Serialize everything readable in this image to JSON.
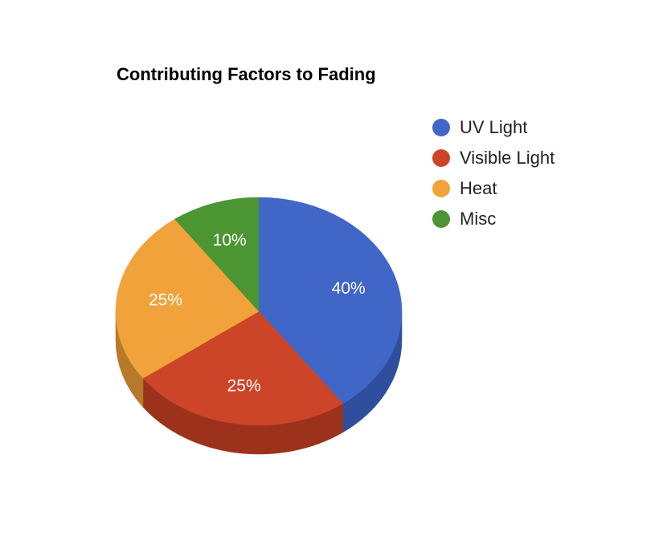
{
  "chart_data": {
    "type": "pie",
    "title": "Contributing Factors to Fading",
    "three_d": true,
    "legend_position": "right",
    "slices": [
      {
        "label": "UV Light",
        "value": 40,
        "display": "40%",
        "color": "#4066c8",
        "side_color": "#2f4f9e"
      },
      {
        "label": "Visible Light",
        "value": 25,
        "display": "25%",
        "color": "#cc4528",
        "side_color": "#9c321c"
      },
      {
        "label": "Heat",
        "value": 25,
        "display": "25%",
        "color": "#f1a23a",
        "side_color": "#b8792b"
      },
      {
        "label": "Misc",
        "value": 10,
        "display": "10%",
        "color": "#4b9633",
        "side_color": "#376f25"
      }
    ]
  }
}
